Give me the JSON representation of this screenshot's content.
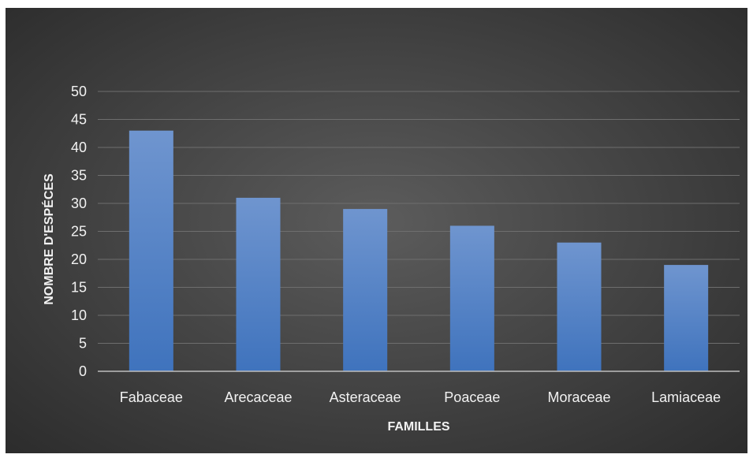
{
  "chart_data": {
    "type": "bar",
    "title": "",
    "xlabel": "FAMILLES",
    "ylabel": "NOMBRE D'ESPÉCES",
    "categories": [
      "Fabaceae",
      "Arecaceae",
      "Asteraceae",
      "Poaceae",
      "Moraceae",
      "Lamiaceae"
    ],
    "values": [
      43,
      31,
      29,
      26,
      23,
      19
    ],
    "ylim": [
      0,
      50
    ],
    "yticks": [
      0,
      5,
      10,
      15,
      20,
      25,
      30,
      35,
      40,
      45,
      50
    ],
    "grid": true,
    "legend": "none",
    "colors": {
      "bar_top": "#6f95cf",
      "bar_bottom": "#3f73bd",
      "background": "#474747",
      "text": "#f2f2f2",
      "grid": "#6e6e6e"
    }
  }
}
